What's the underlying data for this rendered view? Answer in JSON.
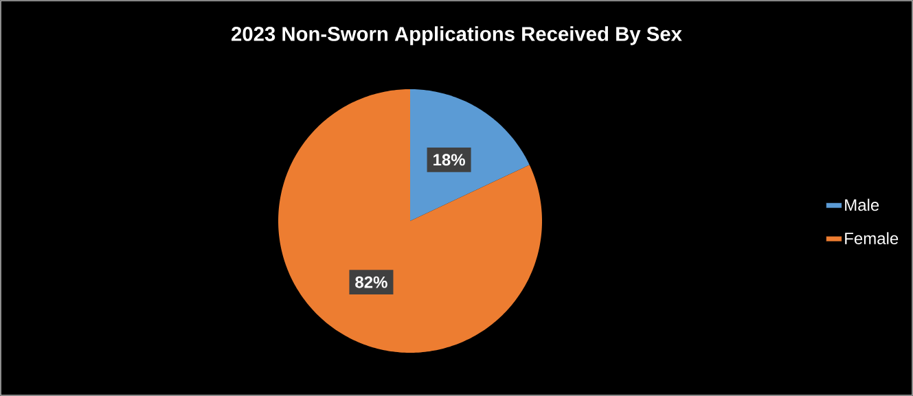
{
  "chart_data": {
    "type": "pie",
    "title": "2023 Non-Sworn Applications Received By Sex",
    "categories": [
      "Male",
      "Female"
    ],
    "values": [
      18,
      82
    ],
    "colors": [
      "#5b9bd5",
      "#ed7d31"
    ],
    "value_labels": [
      "18%",
      "82%"
    ],
    "legend": "right"
  }
}
